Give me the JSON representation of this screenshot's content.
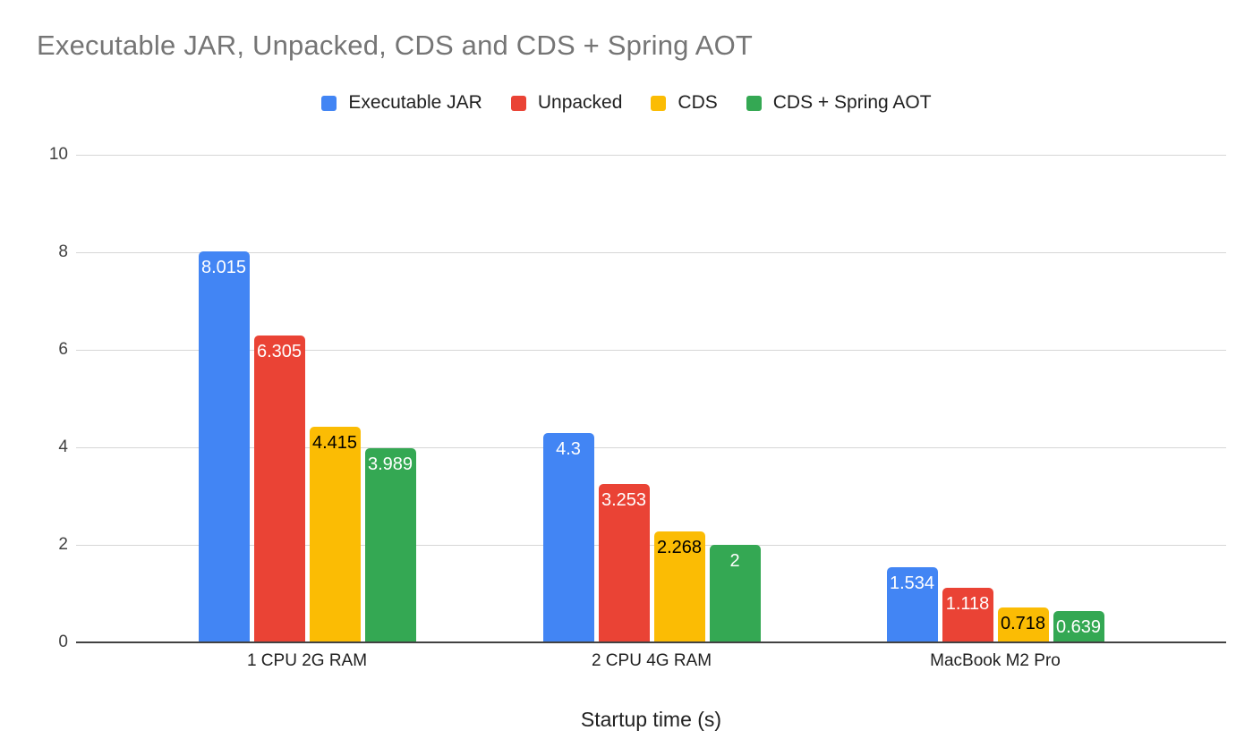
{
  "chart_data": {
    "type": "bar",
    "title": "Executable JAR, Unpacked, CDS and CDS + Spring AOT",
    "categories": [
      "1 CPU 2G RAM",
      "2 CPU 4G RAM",
      "MacBook M2 Pro"
    ],
    "series": [
      {
        "name": "Executable JAR",
        "color": "#4285F4",
        "label_color": "#FFFFFF",
        "values": [
          8.015,
          4.3,
          1.534
        ]
      },
      {
        "name": "Unpacked",
        "color": "#EA4335",
        "label_color": "#FFFFFF",
        "values": [
          6.305,
          3.253,
          1.118
        ]
      },
      {
        "name": "CDS",
        "color": "#FBBC04",
        "label_color": "#000000",
        "values": [
          4.415,
          2.268,
          0.718
        ]
      },
      {
        "name": "CDS + Spring AOT",
        "color": "#34A853",
        "label_color": "#FFFFFF",
        "values": [
          3.989,
          2,
          0.639
        ]
      }
    ],
    "xlabel": "Startup time (s)",
    "ylabel": "",
    "ylim": [
      0,
      10
    ],
    "yticks": [
      0,
      2,
      4,
      6,
      8,
      10
    ],
    "legend_position": "top",
    "grid": true,
    "title_color": "#757575",
    "axis_label_color": "#424242",
    "category_label_color": "#212121",
    "gridline_color": "#D6D6D6",
    "baseline_color": "#424242"
  }
}
